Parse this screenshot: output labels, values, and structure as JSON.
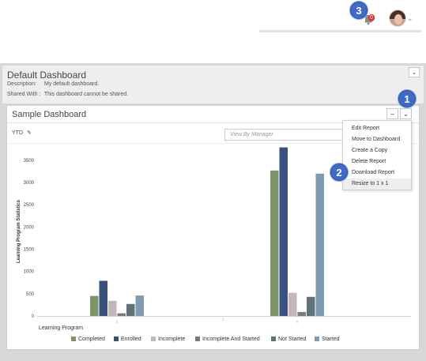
{
  "topbar": {
    "notification_count": "0",
    "avatar_alt": "user-avatar"
  },
  "callouts": [
    "1",
    "2",
    "3"
  ],
  "dashboard": {
    "title": "Default Dashboard",
    "description_label": "Description:",
    "description_value": "My default dashboard.",
    "shared_label": "Shared With :",
    "shared_value": "This dashboard cannot be shared.",
    "toggle_icon": "chevron-down-icon"
  },
  "widget": {
    "title": "Sample Dashboard",
    "minimize_label": "–",
    "menu_icon": "chevron-down-icon",
    "period": "YTD",
    "manager_placeholder": "View By Manager"
  },
  "menu": {
    "items": [
      "Edit Report",
      "Move to Dashboard",
      "Create a Copy",
      "Delete Report",
      "Download Report",
      "Resize to 1 x 1"
    ],
    "highlighted_index": 5
  },
  "chart_data": {
    "type": "bar",
    "xlabel": "Learning Program",
    "ylabel": "Learning Program Statistics",
    "ylim": [
      0,
      3800
    ],
    "yticks": [
      0,
      500,
      1000,
      1500,
      2000,
      2500,
      3000,
      3500
    ],
    "categories": [
      "",
      ""
    ],
    "grid": false,
    "legend_position": "bottom",
    "series": [
      {
        "name": "Completed",
        "color": "#7f9368",
        "values": [
          450,
          3270
        ]
      },
      {
        "name": "Enrolled",
        "color": "#3a507f",
        "values": [
          790,
          3790
        ]
      },
      {
        "name": "Incomplete",
        "color": "#c2b5be",
        "values": [
          340,
          520
        ]
      },
      {
        "name": "Incomplete And Started",
        "color": "#7a7a7a",
        "values": [
          60,
          90
        ]
      },
      {
        "name": "Not Started",
        "color": "#5f7179",
        "values": [
          270,
          430
        ]
      },
      {
        "name": "Started",
        "color": "#7f9bb2",
        "values": [
          460,
          3200
        ]
      }
    ]
  }
}
